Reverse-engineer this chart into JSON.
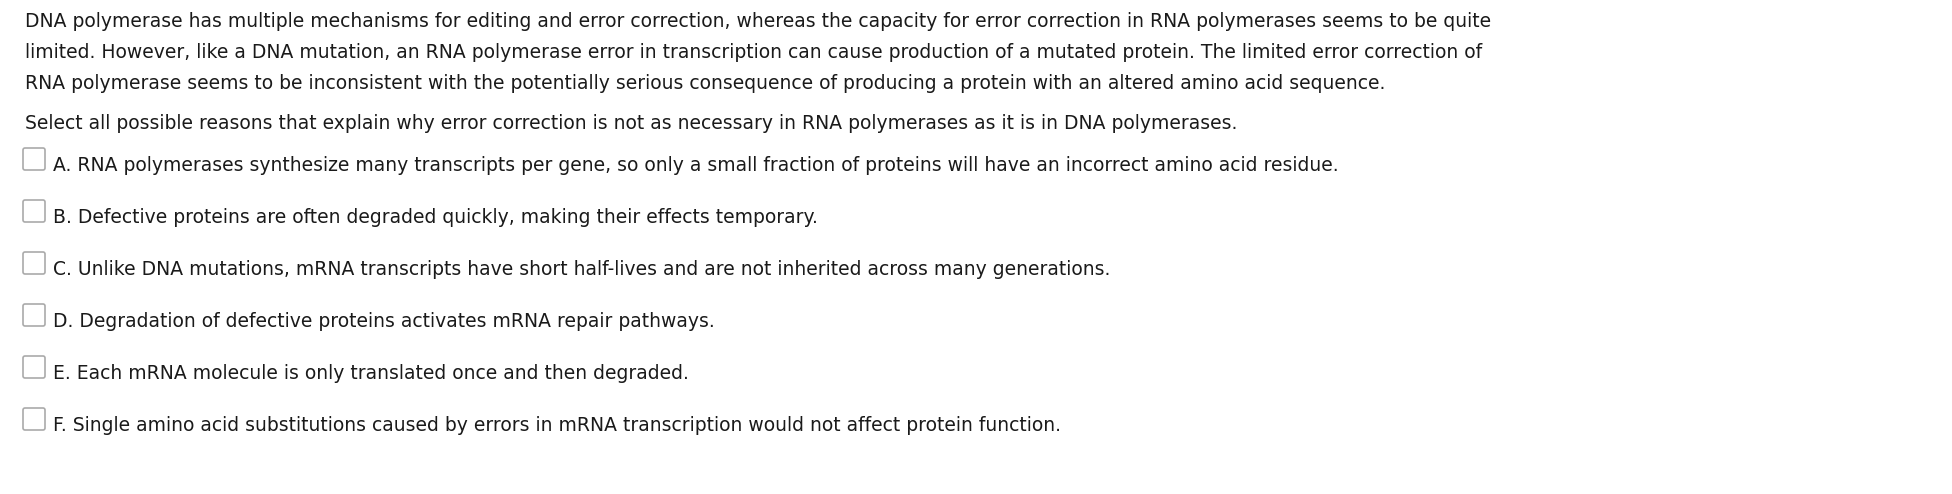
{
  "background_color": "#ffffff",
  "para_line1": "DNA polymerase has multiple mechanisms for editing and error correction, whereas the capacity for error correction in RNA polymerases seems to be quite",
  "para_line2": "limited. However, like a DNA mutation, an RNA polymerase error in transcription can cause production of a mutated protein. The limited error correction of",
  "para_line3": "RNA polymerase seems to be inconsistent with the potentially serious consequence of producing a protein with an altered amino acid sequence.",
  "question": "Select all possible reasons that explain why error correction is not as necessary in RNA polymerases as it is in DNA polymerases.",
  "options": [
    "A. RNA polymerases synthesize many transcripts per gene, so only a small fraction of proteins will have an incorrect amino acid residue.",
    "B. Defective proteins are often degraded quickly, making their effects temporary.",
    "C. Unlike DNA mutations, mRNA transcripts have short half-lives and are not inherited across many generations.",
    "D. Degradation of defective proteins activates mRNA repair pathways.",
    "E. Each mRNA molecule is only translated once and then degraded.",
    "F. Single amino acid substitutions caused by errors in mRNA transcription would not affect protein function."
  ],
  "text_color": "#1a1a1a",
  "font_size": 13.5,
  "figwidth": 19.52,
  "figheight": 4.94,
  "dpi": 100
}
